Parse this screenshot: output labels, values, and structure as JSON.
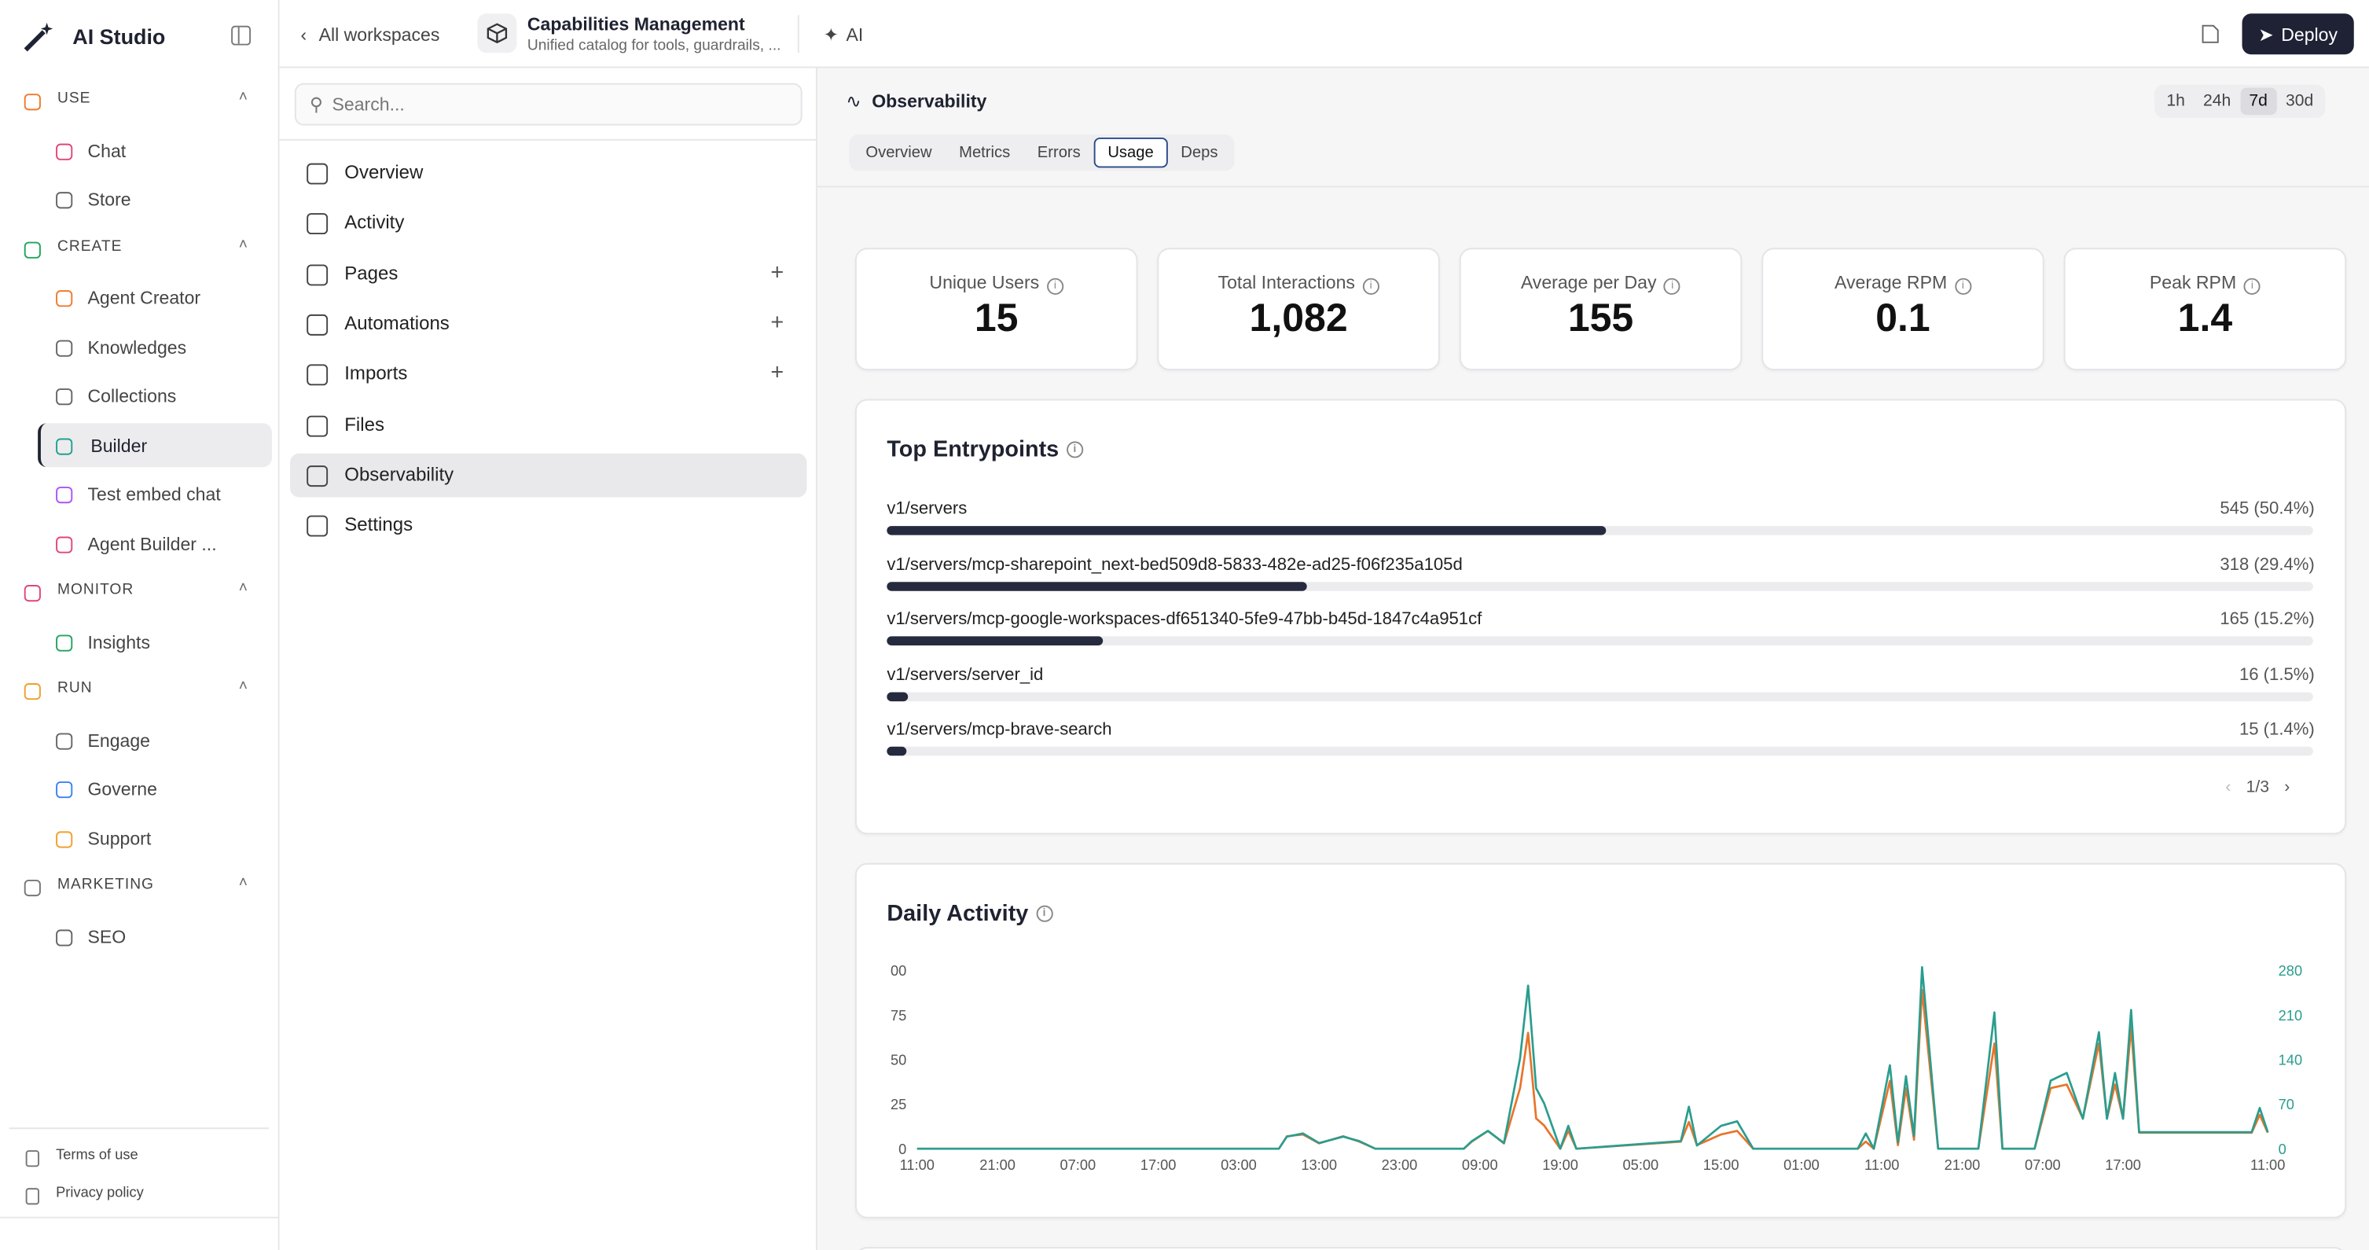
{
  "sidebar": {
    "brand": "AI Studio",
    "active_item": "Builder",
    "sections": [
      {
        "title": "USE",
        "items": [
          "Chat",
          "Store"
        ]
      },
      {
        "title": "CREATE",
        "items": [
          "Agent Creator",
          "Knowledges",
          "Collections",
          "Builder",
          "Test embed chat",
          "Agent Builder ..."
        ]
      },
      {
        "title": "MONITOR",
        "items": [
          "Insights"
        ]
      },
      {
        "title": "RUN",
        "items": [
          "Engage",
          "Governe",
          "Support"
        ]
      },
      {
        "title": "MARKETING",
        "items": [
          "SEO"
        ]
      }
    ],
    "footer": [
      "Terms of use",
      "Privacy policy"
    ]
  },
  "header": {
    "back": "All workspaces",
    "project_title": "Capabilities Management",
    "project_subtitle": "Unified catalog for tools, guardrails, ...",
    "ai": "AI",
    "deploy": "Deploy"
  },
  "nav": {
    "search_placeholder": "Search...",
    "active": "Observability",
    "items": [
      {
        "label": "Overview",
        "addable": false
      },
      {
        "label": "Activity",
        "addable": false
      },
      {
        "label": "Pages",
        "addable": true
      },
      {
        "label": "Automations",
        "addable": true
      },
      {
        "label": "Imports",
        "addable": true
      },
      {
        "label": "Files",
        "addable": false
      },
      {
        "label": "Observability",
        "addable": false
      },
      {
        "label": "Settings",
        "addable": false
      }
    ]
  },
  "panel": {
    "title": "Observability",
    "ranges": [
      "1h",
      "24h",
      "7d",
      "30d"
    ],
    "active_range": "7d",
    "tabs": [
      "Overview",
      "Metrics",
      "Errors",
      "Usage",
      "Deps"
    ],
    "active_tab": "Usage"
  },
  "stats": [
    {
      "label": "Unique Users",
      "value": "15"
    },
    {
      "label": "Total Interactions",
      "value": "1,082"
    },
    {
      "label": "Average per Day",
      "value": "155"
    },
    {
      "label": "Average RPM",
      "value": "0.1"
    },
    {
      "label": "Peak RPM",
      "value": "1.4"
    }
  ],
  "entrypoints": {
    "title": "Top Entrypoints",
    "page": "1/3",
    "xlim": [
      0,
      100
    ],
    "items": [
      {
        "path": "v1/servers",
        "value": 545,
        "share": 50.4,
        "label": "545 (50.4%)"
      },
      {
        "path": "v1/servers/mcp-sharepoint_next-bed509d8-5833-482e-ad25-f06f235a105d",
        "value": 318,
        "share": 29.4,
        "label": "318 (29.4%)"
      },
      {
        "path": "v1/servers/mcp-google-workspaces-df651340-5fe9-47bb-b45d-1847c4a951cf",
        "value": 165,
        "share": 15.2,
        "label": "165 (15.2%)"
      },
      {
        "path": "v1/servers/server_id",
        "value": 16,
        "share": 1.5,
        "label": "16 (1.5%)"
      },
      {
        "path": "v1/servers/mcp-brave-search",
        "value": 15,
        "share": 1.4,
        "label": "15 (1.4%)"
      }
    ]
  },
  "chart_data": {
    "type": "line",
    "title": "Daily Activity",
    "x": [
      0,
      45,
      46,
      48,
      50,
      53,
      55,
      57,
      68,
      69,
      71,
      73,
      75,
      76,
      77,
      78,
      80,
      81,
      82,
      95,
      96,
      97,
      100,
      102,
      104,
      117,
      118,
      119,
      121,
      122,
      123,
      124,
      125,
      127,
      132,
      134,
      135,
      139,
      141,
      143,
      145,
      147,
      148,
      149,
      150,
      151,
      152,
      166,
      167,
      168
    ],
    "xlim": [
      0,
      168
    ],
    "xticks": [
      {
        "value": 0,
        "label": "11:00"
      },
      {
        "value": 10,
        "label": "21:00"
      },
      {
        "value": 20,
        "label": "07:00"
      },
      {
        "value": 30,
        "label": "17:00"
      },
      {
        "value": 40,
        "label": "03:00"
      },
      {
        "value": 50,
        "label": "13:00"
      },
      {
        "value": 60,
        "label": "23:00"
      },
      {
        "value": 70,
        "label": "09:00"
      },
      {
        "value": 80,
        "label": "19:00"
      },
      {
        "value": 90,
        "label": "05:00"
      },
      {
        "value": 100,
        "label": "15:00"
      },
      {
        "value": 110,
        "label": "01:00"
      },
      {
        "value": 120,
        "label": "11:00"
      },
      {
        "value": 130,
        "label": "21:00"
      },
      {
        "value": 140,
        "label": "07:00"
      },
      {
        "value": 150,
        "label": "17:00"
      },
      {
        "value": 168,
        "label": "11:00"
      }
    ],
    "ylim": [
      0,
      100
    ],
    "yticks": [
      0,
      25,
      50,
      75,
      {
        "value": 100,
        "label": "00"
      }
    ],
    "y2lim": [
      0,
      280
    ],
    "y2ticks": [
      0,
      70,
      140,
      210,
      280
    ],
    "y2color": "#2a9d8f",
    "series": [
      {
        "color": "#e8742a",
        "values": [
          0,
          0,
          7,
          8,
          3,
          7,
          4,
          0,
          0,
          4,
          10,
          3,
          34,
          65,
          17,
          13,
          0,
          10,
          0,
          4,
          15,
          2,
          8,
          10,
          0,
          0,
          4,
          0,
          38,
          2,
          34,
          5,
          89,
          0,
          0,
          59,
          0,
          0,
          34,
          36,
          17,
          59,
          17,
          36,
          17,
          68,
          9,
          9,
          19,
          9
        ]
      },
      {
        "color": "#2a9d8f",
        "axis": "y2",
        "values": [
          0,
          0,
          19,
          24,
          9,
          19,
          12,
          0,
          0,
          12,
          28,
          9,
          142,
          256,
          95,
          71,
          0,
          36,
          0,
          12,
          66,
          5,
          36,
          43,
          0,
          0,
          24,
          0,
          131,
          10,
          114,
          20,
          285,
          0,
          0,
          214,
          0,
          0,
          107,
          119,
          47,
          183,
          47,
          119,
          47,
          218,
          26,
          26,
          64,
          26
        ]
      }
    ]
  }
}
